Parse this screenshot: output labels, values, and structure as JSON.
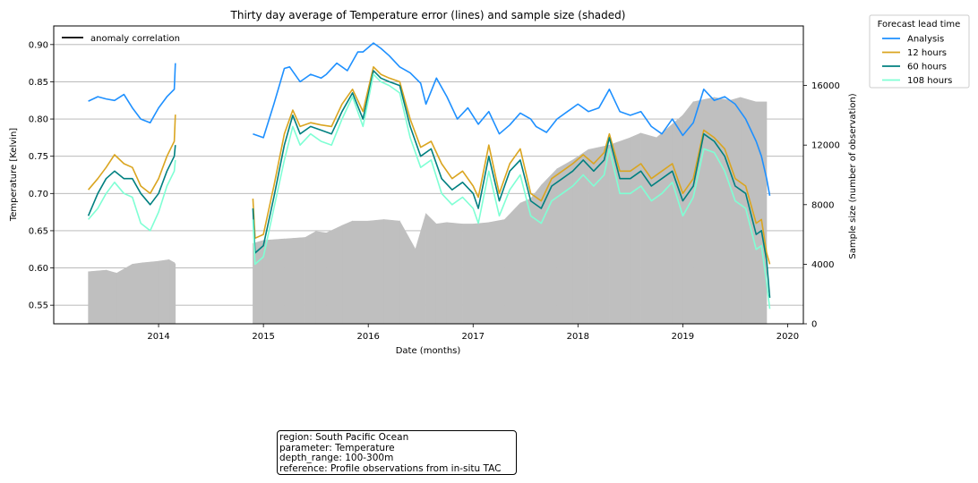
{
  "chart_data": {
    "type": "line",
    "title": "Thirty day average of Temperature error (lines) and sample size (shaded)",
    "xlabel": "Date (months)",
    "ylabel": "Temperature [Kelvin]",
    "y2label": "Sample size (number of observation)",
    "xlim": [
      2013.0,
      2020.15
    ],
    "ylim": [
      0.525,
      0.925
    ],
    "y2lim": [
      0,
      20000
    ],
    "x_ticks": [
      "2014",
      "2015",
      "2016",
      "2017",
      "2018",
      "2019",
      "2020"
    ],
    "y_ticks": [
      "0.55",
      "0.60",
      "0.65",
      "0.70",
      "0.75",
      "0.80",
      "0.85",
      "0.90"
    ],
    "y2_ticks": [
      "0",
      "4000",
      "8000",
      "12000",
      "16000"
    ],
    "grid": "horizontal",
    "inner_legend": {
      "label": "anomaly correlation",
      "color": "#000000",
      "location": "upper-left"
    },
    "legend": {
      "title": "Forecast lead time",
      "location": "outside-right",
      "entries": [
        {
          "label": "Analysis",
          "color": "#1e90ff"
        },
        {
          "label": "12 hours",
          "color": "#daa520"
        },
        {
          "label": "60 hours",
          "color": "#008080"
        },
        {
          "label": "108 hours",
          "color": "#7fffd4"
        }
      ]
    },
    "sample_size": {
      "color": "#bfbfbf",
      "x": [
        2013.33,
        2013.5,
        2013.6,
        2013.75,
        2013.85,
        2014.0,
        2014.1,
        2014.15,
        2014.16,
        2014.9,
        2015.0,
        2015.2,
        2015.4,
        2015.5,
        2015.6,
        2015.75,
        2015.85,
        2016.0,
        2016.15,
        2016.3,
        2016.45,
        2016.55,
        2016.65,
        2016.75,
        2016.9,
        2017.0,
        2017.15,
        2017.3,
        2017.45,
        2017.55,
        2017.65,
        2017.8,
        2017.95,
        2018.1,
        2018.3,
        2018.5,
        2018.6,
        2018.75,
        2018.9,
        2019.0,
        2019.1,
        2019.3,
        2019.45,
        2019.55,
        2019.7,
        2019.8
      ],
      "values": [
        3500,
        3600,
        3400,
        4000,
        4100,
        4200,
        4300,
        4100,
        4000,
        5400,
        5600,
        5700,
        5800,
        6200,
        6100,
        6600,
        6900,
        6900,
        7000,
        6900,
        5000,
        7400,
        6700,
        6800,
        6700,
        6700,
        6800,
        7000,
        8100,
        8400,
        9300,
        10400,
        11000,
        11700,
        12000,
        12500,
        12800,
        12500,
        13400,
        14000,
        14900,
        15200,
        15000,
        15200,
        14900,
        14900
      ]
    },
    "series": [
      {
        "name": "Analysis",
        "color": "#1e90ff",
        "segments": [
          {
            "x": [
              2013.33,
              2013.42,
              2013.5,
              2013.58,
              2013.67,
              2013.75,
              2013.83,
              2013.92,
              2014.0,
              2014.08,
              2014.15,
              2014.16
            ],
            "values": [
              0.824,
              0.83,
              0.827,
              0.825,
              0.833,
              0.815,
              0.8,
              0.795,
              0.815,
              0.83,
              0.84,
              0.875
            ]
          },
          {
            "x": [
              2014.9,
              2015.0,
              2015.1,
              2015.2,
              2015.25,
              2015.35,
              2015.45,
              2015.55,
              2015.6,
              2015.7,
              2015.8,
              2015.9,
              2015.95,
              2016.05,
              2016.12,
              2016.2,
              2016.3,
              2016.4,
              2016.5,
              2016.55,
              2016.65,
              2016.75,
              2016.85,
              2016.95,
              2017.05,
              2017.15,
              2017.25,
              2017.35,
              2017.45,
              2017.55,
              2017.6,
              2017.7,
              2017.8,
              2017.9,
              2018.0,
              2018.1,
              2018.2,
              2018.3,
              2018.4,
              2018.5,
              2018.6,
              2018.7,
              2018.8,
              2018.9,
              2019.0,
              2019.1,
              2019.2,
              2019.3,
              2019.4,
              2019.5,
              2019.6,
              2019.7,
              2019.75,
              2019.8,
              2019.83
            ],
            "values": [
              0.78,
              0.775,
              0.82,
              0.868,
              0.87,
              0.85,
              0.86,
              0.855,
              0.86,
              0.875,
              0.865,
              0.89,
              0.89,
              0.902,
              0.895,
              0.885,
              0.87,
              0.862,
              0.848,
              0.82,
              0.855,
              0.83,
              0.8,
              0.815,
              0.793,
              0.81,
              0.78,
              0.792,
              0.808,
              0.8,
              0.79,
              0.782,
              0.8,
              0.81,
              0.82,
              0.81,
              0.815,
              0.84,
              0.81,
              0.805,
              0.81,
              0.79,
              0.78,
              0.8,
              0.778,
              0.795,
              0.84,
              0.825,
              0.83,
              0.82,
              0.8,
              0.77,
              0.75,
              0.72,
              0.697
            ]
          }
        ]
      },
      {
        "name": "12 hours",
        "color": "#daa520",
        "segments": [
          {
            "x": [
              2013.33,
              2013.42,
              2013.5,
              2013.58,
              2013.67,
              2013.75,
              2013.83,
              2013.92,
              2014.0,
              2014.08,
              2014.15,
              2014.16
            ],
            "values": [
              0.705,
              0.72,
              0.735,
              0.752,
              0.74,
              0.735,
              0.71,
              0.7,
              0.72,
              0.75,
              0.77,
              0.806
            ]
          },
          {
            "x": [
              2014.9,
              2014.92,
              2015.0,
              2015.1,
              2015.2,
              2015.28,
              2015.35,
              2015.45,
              2015.55,
              2015.65,
              2015.75,
              2015.85,
              2015.95,
              2016.05,
              2016.12,
              2016.2,
              2016.3,
              2016.4,
              2016.5,
              2016.6,
              2016.7,
              2016.8,
              2016.9,
              2017.0,
              2017.05,
              2017.15,
              2017.25,
              2017.35,
              2017.45,
              2017.55,
              2017.65,
              2017.75,
              2017.85,
              2017.95,
              2018.05,
              2018.15,
              2018.25,
              2018.3,
              2018.4,
              2018.5,
              2018.6,
              2018.7,
              2018.8,
              2018.9,
              2019.0,
              2019.1,
              2019.2,
              2019.3,
              2019.4,
              2019.5,
              2019.6,
              2019.7,
              2019.75,
              2019.8,
              2019.83
            ],
            "values": [
              0.693,
              0.64,
              0.645,
              0.71,
              0.78,
              0.812,
              0.79,
              0.795,
              0.792,
              0.79,
              0.82,
              0.84,
              0.81,
              0.87,
              0.86,
              0.855,
              0.85,
              0.8,
              0.762,
              0.77,
              0.74,
              0.72,
              0.73,
              0.71,
              0.695,
              0.765,
              0.7,
              0.74,
              0.76,
              0.7,
              0.69,
              0.72,
              0.73,
              0.74,
              0.752,
              0.74,
              0.755,
              0.78,
              0.73,
              0.73,
              0.74,
              0.72,
              0.73,
              0.74,
              0.7,
              0.72,
              0.785,
              0.775,
              0.76,
              0.72,
              0.71,
              0.66,
              0.665,
              0.62,
              0.605
            ]
          }
        ]
      },
      {
        "name": "60 hours",
        "color": "#008080",
        "segments": [
          {
            "x": [
              2013.33,
              2013.42,
              2013.5,
              2013.58,
              2013.67,
              2013.75,
              2013.83,
              2013.92,
              2014.0,
              2014.08,
              2014.15,
              2014.16
            ],
            "values": [
              0.67,
              0.7,
              0.72,
              0.73,
              0.72,
              0.72,
              0.7,
              0.685,
              0.7,
              0.73,
              0.75,
              0.765
            ]
          },
          {
            "x": [
              2014.9,
              2014.92,
              2015.0,
              2015.1,
              2015.2,
              2015.28,
              2015.35,
              2015.45,
              2015.55,
              2015.65,
              2015.75,
              2015.85,
              2015.95,
              2016.05,
              2016.12,
              2016.2,
              2016.3,
              2016.4,
              2016.5,
              2016.6,
              2016.7,
              2016.8,
              2016.9,
              2017.0,
              2017.05,
              2017.15,
              2017.25,
              2017.35,
              2017.45,
              2017.55,
              2017.65,
              2017.75,
              2017.85,
              2017.95,
              2018.05,
              2018.15,
              2018.25,
              2018.3,
              2018.4,
              2018.5,
              2018.6,
              2018.7,
              2018.8,
              2018.9,
              2019.0,
              2019.1,
              2019.2,
              2019.3,
              2019.4,
              2019.5,
              2019.6,
              2019.7,
              2019.75,
              2019.8,
              2019.83
            ],
            "values": [
              0.68,
              0.62,
              0.63,
              0.695,
              0.765,
              0.805,
              0.78,
              0.79,
              0.785,
              0.78,
              0.81,
              0.835,
              0.8,
              0.865,
              0.855,
              0.85,
              0.845,
              0.79,
              0.75,
              0.76,
              0.72,
              0.705,
              0.715,
              0.7,
              0.68,
              0.75,
              0.69,
              0.73,
              0.745,
              0.69,
              0.68,
              0.71,
              0.72,
              0.73,
              0.745,
              0.73,
              0.745,
              0.775,
              0.72,
              0.72,
              0.73,
              0.71,
              0.72,
              0.73,
              0.69,
              0.71,
              0.78,
              0.77,
              0.75,
              0.71,
              0.7,
              0.645,
              0.65,
              0.61,
              0.56
            ]
          }
        ]
      },
      {
        "name": "108 hours",
        "color": "#7fffd4",
        "segments": [
          {
            "x": [
              2013.33,
              2013.42,
              2013.5,
              2013.58,
              2013.67,
              2013.75,
              2013.83,
              2013.92,
              2014.0,
              2014.08,
              2014.15,
              2014.16
            ],
            "values": [
              0.665,
              0.68,
              0.7,
              0.715,
              0.7,
              0.695,
              0.66,
              0.65,
              0.675,
              0.71,
              0.73,
              0.745
            ]
          },
          {
            "x": [
              2014.9,
              2014.92,
              2015.0,
              2015.1,
              2015.2,
              2015.28,
              2015.35,
              2015.45,
              2015.55,
              2015.65,
              2015.75,
              2015.85,
              2015.95,
              2016.05,
              2016.12,
              2016.2,
              2016.3,
              2016.4,
              2016.5,
              2016.6,
              2016.7,
              2016.8,
              2016.9,
              2017.0,
              2017.05,
              2017.15,
              2017.25,
              2017.35,
              2017.45,
              2017.55,
              2017.65,
              2017.75,
              2017.85,
              2017.95,
              2018.05,
              2018.15,
              2018.25,
              2018.3,
              2018.4,
              2018.5,
              2018.6,
              2018.7,
              2018.8,
              2018.9,
              2019.0,
              2019.1,
              2019.2,
              2019.3,
              2019.4,
              2019.5,
              2019.6,
              2019.7,
              2019.75,
              2019.8,
              2019.83
            ],
            "values": [
              0.665,
              0.605,
              0.615,
              0.68,
              0.745,
              0.79,
              0.765,
              0.78,
              0.77,
              0.765,
              0.8,
              0.83,
              0.79,
              0.86,
              0.85,
              0.845,
              0.835,
              0.775,
              0.735,
              0.745,
              0.7,
              0.685,
              0.695,
              0.68,
              0.66,
              0.73,
              0.67,
              0.705,
              0.725,
              0.67,
              0.66,
              0.69,
              0.7,
              0.71,
              0.725,
              0.71,
              0.725,
              0.76,
              0.7,
              0.7,
              0.71,
              0.69,
              0.7,
              0.715,
              0.67,
              0.695,
              0.76,
              0.755,
              0.73,
              0.69,
              0.68,
              0.625,
              0.63,
              0.58,
              0.545
            ]
          }
        ]
      }
    ]
  },
  "info_box": [
    "region: South Pacific Ocean",
    "parameter: Temperature",
    "depth_range: 100-300m",
    "reference: Profile observations from in-situ TAC"
  ]
}
